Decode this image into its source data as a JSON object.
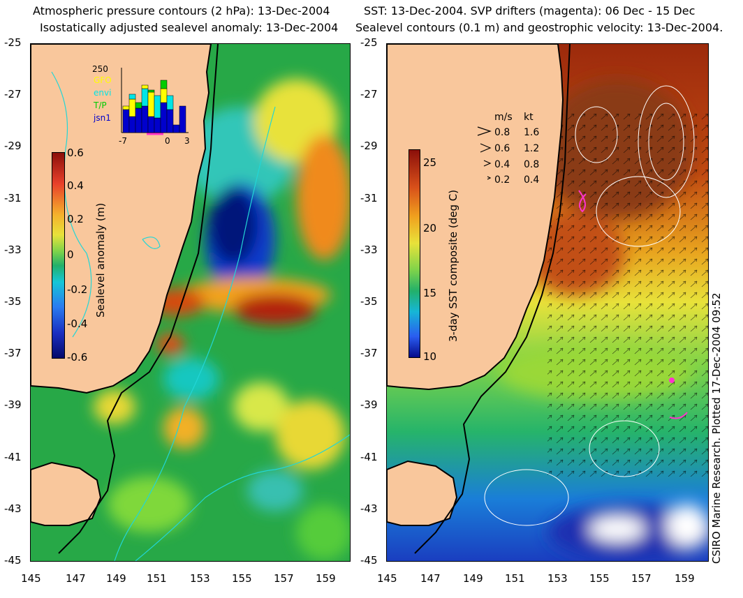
{
  "left_panel": {
    "title_line1": "Atmospheric pressure contours (2 hPa): 13-Dec-2004",
    "title_line2": "Isostatically adjusted sealevel anomaly: 13-Dec-2004",
    "colorbar": {
      "label": "Sealevel anomaly (m)",
      "ticks": [
        "0.6",
        "0.4",
        "0.2",
        "0",
        "-0.2",
        "-0.4",
        "-0.6"
      ]
    },
    "inset": {
      "y_tick": "250",
      "legend": [
        {
          "name": "GFO",
          "color": "#ffff00"
        },
        {
          "name": "envi",
          "color": "#00e5e5"
        },
        {
          "name": "T/P",
          "color": "#00cc00"
        },
        {
          "name": "jsn1",
          "color": "#0000cc"
        }
      ],
      "x_ticks": [
        "-7",
        "0",
        "3"
      ]
    }
  },
  "right_panel": {
    "title_line1": "SST: 13-Dec-2004. SVP drifters (magenta): 06 Dec - 15 Dec",
    "title_line2": "Sealevel contours (0.1 m) and geostrophic velocity: 13-Dec-2004.",
    "colorbar": {
      "label": "3-day SST composite (deg C)",
      "ticks": [
        "25",
        "20",
        "15",
        "10"
      ]
    },
    "speed_legend": {
      "headers": [
        "m/s",
        "kt"
      ],
      "rows": [
        {
          "ms": "0.8",
          "kt": "1.6"
        },
        {
          "ms": "0.6",
          "kt": "1.2"
        },
        {
          "ms": "0.4",
          "kt": "0.8"
        },
        {
          "ms": "0.2",
          "kt": "0.4"
        }
      ]
    }
  },
  "axes": {
    "lat_ticks": [
      "-25",
      "-27",
      "-29",
      "-31",
      "-33",
      "-35",
      "-37",
      "-39",
      "-41",
      "-43",
      "-45"
    ],
    "lon_ticks": [
      "145",
      "147",
      "149",
      "151",
      "153",
      "155",
      "157",
      "159"
    ]
  },
  "credit": "CSIRO Marine Research. Plotted 17-Dec-2004 09:52",
  "colors": {
    "land": "#f9c79c",
    "positive_anomaly": "#b2200b",
    "negative_anomaly": "#0a1a8a",
    "warm_sst": "#9c3a10",
    "cool_sst": "#1a4fc4",
    "drifter": "#ff33cc"
  }
}
